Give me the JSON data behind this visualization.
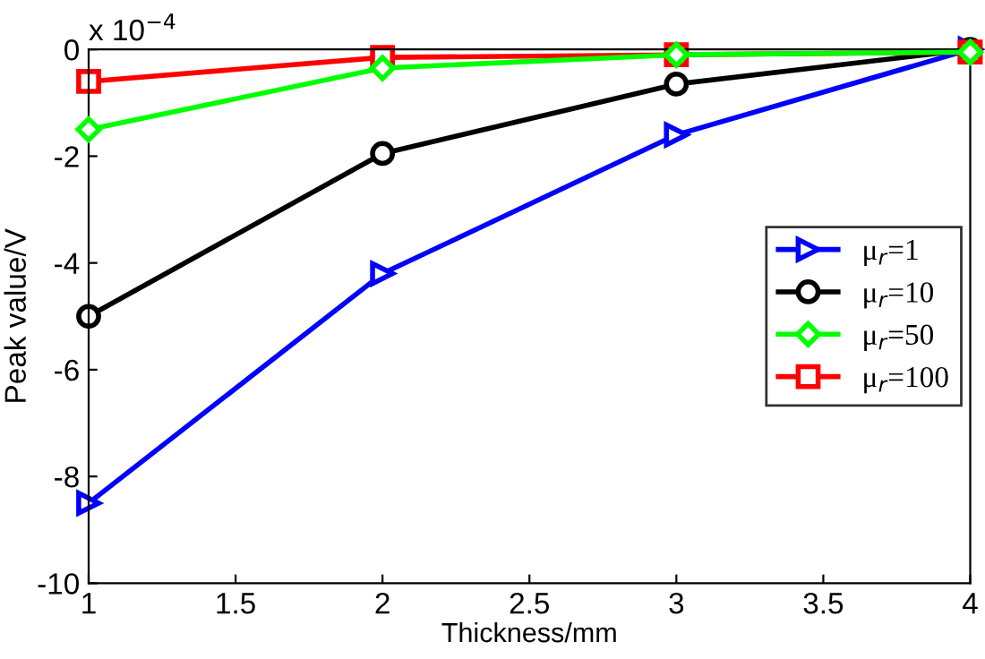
{
  "chart_data": {
    "type": "line",
    "xlabel": "Thickness/mm",
    "ylabel": "Peak value/V",
    "annotations": [
      "x 10$^{−4}$"
    ],
    "x": [
      1,
      2,
      3,
      4
    ],
    "series": [
      {
        "name": "μ$_{r}$=1",
        "color": "#0000ff",
        "marker": "triangle",
        "values": [
          -8.5,
          -4.2,
          -1.6,
          0
        ]
      },
      {
        "name": "μ$_{r}$=10",
        "color": "#000000",
        "marker": "circle",
        "values": [
          -5.0,
          -1.95,
          -0.65,
          0
        ]
      },
      {
        "name": "μ$_{r}$=50",
        "color": "#00ff00",
        "marker": "diamond",
        "values": [
          -1.5,
          -0.35,
          -0.1,
          -0.05
        ]
      },
      {
        "name": "μ$_{r}$=100",
        "color": "#ff0000",
        "marker": "square",
        "values": [
          -0.6,
          -0.15,
          -0.1,
          -0.05
        ]
      }
    ],
    "xlim": [
      1,
      4
    ],
    "xticks": [
      1,
      1.5,
      2,
      2.5,
      3,
      3.5,
      4
    ],
    "ylim": [
      -10,
      0
    ],
    "yticks": [
      -10,
      -8,
      -6,
      -4,
      -2,
      0
    ],
    "grid": false,
    "legend": "right",
    "line_style": "solid"
  }
}
